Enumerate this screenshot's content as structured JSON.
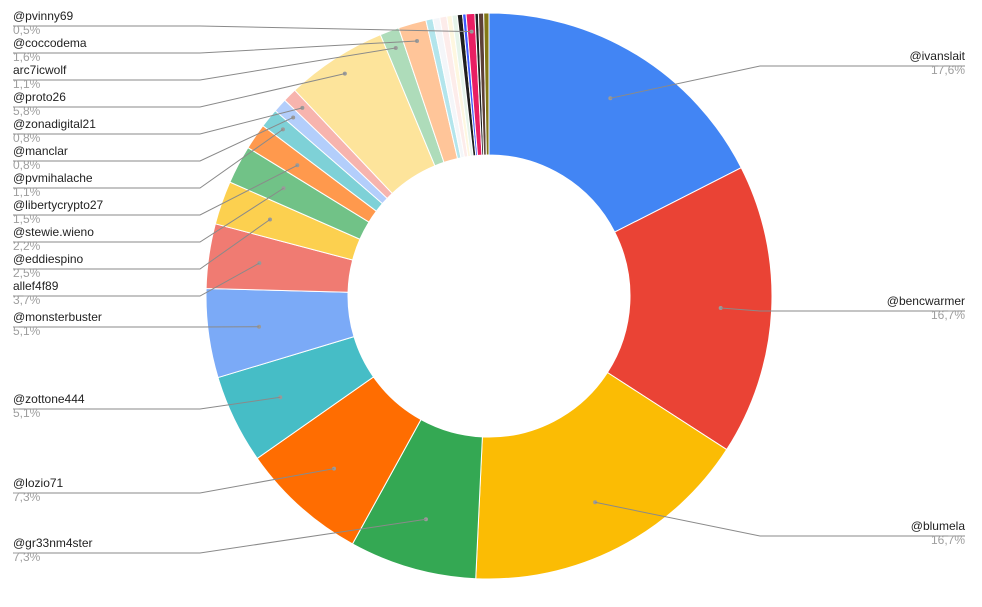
{
  "chart_data": {
    "type": "pie",
    "donut": true,
    "title": "",
    "legend": "none",
    "slices": [
      {
        "label": "@ivanslait",
        "value_label": "17,6%",
        "value": 17.6,
        "color": "#4285f4"
      },
      {
        "label": "@bencwarmer",
        "value_label": "16,7%",
        "value": 16.7,
        "color": "#ea4335"
      },
      {
        "label": "@blumela",
        "value_label": "16,7%",
        "value": 16.7,
        "color": "#fbbc04"
      },
      {
        "label": "@gr33nm4ster",
        "value_label": "7,3%",
        "value": 7.3,
        "color": "#34a853"
      },
      {
        "label": "@lozio71",
        "value_label": "7,3%",
        "value": 7.3,
        "color": "#ff6d01"
      },
      {
        "label": "@zottone444",
        "value_label": "5,1%",
        "value": 5.1,
        "color": "#46bdc6"
      },
      {
        "label": "@monsterbuster",
        "value_label": "5,1%",
        "value": 5.1,
        "color": "#7baaf7"
      },
      {
        "label": "allef4f89",
        "value_label": "3,7%",
        "value": 3.7,
        "color": "#f07b72"
      },
      {
        "label": "@eddiespino",
        "value_label": "2,5%",
        "value": 2.5,
        "color": "#fcd04f"
      },
      {
        "label": "@stewie.wieno",
        "value_label": "2,2%",
        "value": 2.2,
        "color": "#71c287"
      },
      {
        "label": "@libertycrypto27",
        "value_label": "1,5%",
        "value": 1.5,
        "color": "#ff994d"
      },
      {
        "label": "@pvmihalache",
        "value_label": "1,1%",
        "value": 1.1,
        "color": "#7ed1d7"
      },
      {
        "label": "@manclar",
        "value_label": "0,8%",
        "value": 0.8,
        "color": "#b3cefb"
      },
      {
        "label": "@zonadigital21",
        "value_label": "0,8%",
        "value": 0.8,
        "color": "#f7b4ae"
      },
      {
        "label": "@proto26",
        "value_label": "5,8%",
        "value": 5.8,
        "color": "#fde49b"
      },
      {
        "label": "arc7icwolf",
        "value_label": "1,1%",
        "value": 1.1,
        "color": "#aedcba"
      },
      {
        "label": "@coccodema",
        "value_label": "1,6%",
        "value": 1.6,
        "color": "#ffc599"
      },
      {
        "label": "",
        "value_label": "",
        "value": 0.4,
        "color": "#b3e5ec"
      },
      {
        "label": "",
        "value_label": "",
        "value": 0.4,
        "color": "#f4f6f9"
      },
      {
        "label": "",
        "value_label": "",
        "value": 0.4,
        "color": "#fdecea"
      },
      {
        "label": "",
        "value_label": "",
        "value": 0.3,
        "color": "#fef7e0"
      },
      {
        "label": "",
        "value_label": "",
        "value": 0.3,
        "color": "#e6f4ea"
      },
      {
        "label": "",
        "value_label": "",
        "value": 0.3,
        "color": "#1f1f1f"
      },
      {
        "label": "",
        "value_label": "",
        "value": 0.2,
        "color": "#3d5afe"
      },
      {
        "label": "@pvinny69",
        "value_label": "0,5%",
        "value": 0.5,
        "color": "#e91e63"
      },
      {
        "label": "",
        "value_label": "",
        "value": 0.2,
        "color": "#212121"
      },
      {
        "label": "",
        "value_label": "",
        "value": 0.3,
        "color": "#5d4037"
      },
      {
        "label": "",
        "value_label": "",
        "value": 0.3,
        "color": "#827717"
      }
    ]
  }
}
